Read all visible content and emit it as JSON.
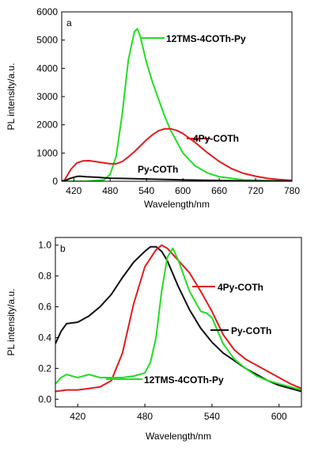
{
  "chart_data": [
    {
      "panel_label": "a",
      "type": "line",
      "xlabel": "Wavelength/nm",
      "ylabel": "PL intensity/a.u.",
      "xlim": [
        400,
        780
      ],
      "ylim": [
        0,
        6000
      ],
      "x_ticks": [
        420,
        480,
        540,
        600,
        660,
        720,
        780
      ],
      "y_ticks": [
        0,
        1000,
        2000,
        3000,
        4000,
        5000,
        6000
      ],
      "grid": false,
      "series": [
        {
          "name": "12TMS-4COTh-Py",
          "color": "#22dd22",
          "points": [
            [
              400,
              0
            ],
            [
              440,
              0
            ],
            [
              470,
              50
            ],
            [
              480,
              250
            ],
            [
              490,
              900
            ],
            [
              500,
              2400
            ],
            [
              510,
              4300
            ],
            [
              520,
              5300
            ],
            [
              525,
              5400
            ],
            [
              530,
              5100
            ],
            [
              540,
              4200
            ],
            [
              550,
              3500
            ],
            [
              560,
              2900
            ],
            [
              570,
              2300
            ],
            [
              580,
              1800
            ],
            [
              600,
              1000
            ],
            [
              620,
              550
            ],
            [
              640,
              300
            ],
            [
              660,
              160
            ],
            [
              700,
              50
            ],
            [
              780,
              0
            ]
          ]
        },
        {
          "name": "4Py-COTh",
          "color": "#e31a1c",
          "points": [
            [
              400,
              0
            ],
            [
              405,
              50
            ],
            [
              415,
              420
            ],
            [
              425,
              650
            ],
            [
              435,
              720
            ],
            [
              445,
              730
            ],
            [
              455,
              700
            ],
            [
              470,
              650
            ],
            [
              480,
              620
            ],
            [
              490,
              620
            ],
            [
              500,
              700
            ],
            [
              510,
              860
            ],
            [
              520,
              1050
            ],
            [
              530,
              1260
            ],
            [
              540,
              1470
            ],
            [
              550,
              1650
            ],
            [
              560,
              1790
            ],
            [
              570,
              1860
            ],
            [
              580,
              1860
            ],
            [
              590,
              1800
            ],
            [
              600,
              1690
            ],
            [
              620,
              1380
            ],
            [
              640,
              1020
            ],
            [
              660,
              700
            ],
            [
              680,
              450
            ],
            [
              700,
              280
            ],
            [
              720,
              180
            ],
            [
              740,
              100
            ],
            [
              760,
              60
            ],
            [
              780,
              30
            ]
          ]
        },
        {
          "name": "Py-COTh",
          "color": "#111111",
          "points": [
            [
              400,
              0
            ],
            [
              405,
              20
            ],
            [
              415,
              110
            ],
            [
              425,
              170
            ],
            [
              430,
              180
            ],
            [
              440,
              160
            ],
            [
              460,
              140
            ],
            [
              480,
              110
            ],
            [
              500,
              100
            ],
            [
              520,
              90
            ],
            [
              540,
              80
            ],
            [
              560,
              70
            ],
            [
              580,
              60
            ],
            [
              600,
              50
            ],
            [
              640,
              35
            ],
            [
              700,
              15
            ],
            [
              780,
              5
            ]
          ]
        }
      ],
      "annotations": [
        {
          "text": "12TMS-4COTh-Py",
          "series": 0
        },
        {
          "text": "4Py-COTh",
          "series": 1
        },
        {
          "text": "Py-COTh",
          "series": 2
        }
      ]
    },
    {
      "panel_label": "b",
      "type": "line",
      "xlabel": "Wavelength/nm",
      "ylabel": "PL intensity/a.u.",
      "xlim": [
        400,
        620
      ],
      "ylim": [
        -0.05,
        1.05
      ],
      "x_ticks": [
        420,
        480,
        540,
        600
      ],
      "y_ticks": [
        0.0,
        0.2,
        0.4,
        0.6,
        0.8,
        1.0
      ],
      "grid": false,
      "series": [
        {
          "name": "Py-COTh",
          "color": "#111111",
          "points": [
            [
              400,
              0.36
            ],
            [
              405,
              0.44
            ],
            [
              410,
              0.49
            ],
            [
              420,
              0.5
            ],
            [
              430,
              0.54
            ],
            [
              440,
              0.6
            ],
            [
              450,
              0.68
            ],
            [
              460,
              0.79
            ],
            [
              470,
              0.89
            ],
            [
              480,
              0.96
            ],
            [
              485,
              0.99
            ],
            [
              490,
              0.99
            ],
            [
              495,
              0.96
            ],
            [
              500,
              0.9
            ],
            [
              510,
              0.73
            ],
            [
              520,
              0.58
            ],
            [
              530,
              0.46
            ],
            [
              540,
              0.37
            ],
            [
              550,
              0.3
            ],
            [
              560,
              0.25
            ],
            [
              570,
              0.2
            ],
            [
              580,
              0.16
            ],
            [
              590,
              0.12
            ],
            [
              600,
              0.09
            ],
            [
              610,
              0.07
            ],
            [
              620,
              0.05
            ]
          ]
        },
        {
          "name": "4Py-COTh",
          "color": "#e31a1c",
          "points": [
            [
              400,
              0.05
            ],
            [
              410,
              0.06
            ],
            [
              420,
              0.06
            ],
            [
              430,
              0.07
            ],
            [
              440,
              0.08
            ],
            [
              450,
              0.12
            ],
            [
              460,
              0.3
            ],
            [
              470,
              0.62
            ],
            [
              480,
              0.86
            ],
            [
              490,
              0.97
            ],
            [
              495,
              1.0
            ],
            [
              500,
              0.98
            ],
            [
              510,
              0.9
            ],
            [
              520,
              0.82
            ],
            [
              530,
              0.7
            ],
            [
              540,
              0.57
            ],
            [
              550,
              0.42
            ],
            [
              560,
              0.32
            ],
            [
              570,
              0.26
            ],
            [
              580,
              0.22
            ],
            [
              590,
              0.18
            ],
            [
              600,
              0.14
            ],
            [
              610,
              0.1
            ],
            [
              620,
              0.07
            ]
          ]
        },
        {
          "name": "12TMS-4COTh-Py",
          "color": "#22dd22",
          "points": [
            [
              400,
              0.1
            ],
            [
              405,
              0.14
            ],
            [
              410,
              0.16
            ],
            [
              420,
              0.14
            ],
            [
              430,
              0.16
            ],
            [
              440,
              0.14
            ],
            [
              450,
              0.14
            ],
            [
              460,
              0.14
            ],
            [
              470,
              0.15
            ],
            [
              480,
              0.17
            ],
            [
              485,
              0.24
            ],
            [
              490,
              0.4
            ],
            [
              495,
              0.7
            ],
            [
              500,
              0.92
            ],
            [
              505,
              0.98
            ],
            [
              510,
              0.9
            ],
            [
              520,
              0.7
            ],
            [
              530,
              0.57
            ],
            [
              535,
              0.56
            ],
            [
              540,
              0.53
            ],
            [
              550,
              0.36
            ],
            [
              560,
              0.26
            ],
            [
              570,
              0.2
            ],
            [
              580,
              0.15
            ],
            [
              590,
              0.12
            ],
            [
              600,
              0.1
            ],
            [
              610,
              0.08
            ],
            [
              620,
              0.06
            ]
          ]
        }
      ],
      "annotations": [
        {
          "text": "4Py-COTh",
          "series": 1
        },
        {
          "text": "Py-COTh",
          "series": 0
        },
        {
          "text": "12TMS-4COTh-Py",
          "series": 2
        }
      ]
    }
  ]
}
